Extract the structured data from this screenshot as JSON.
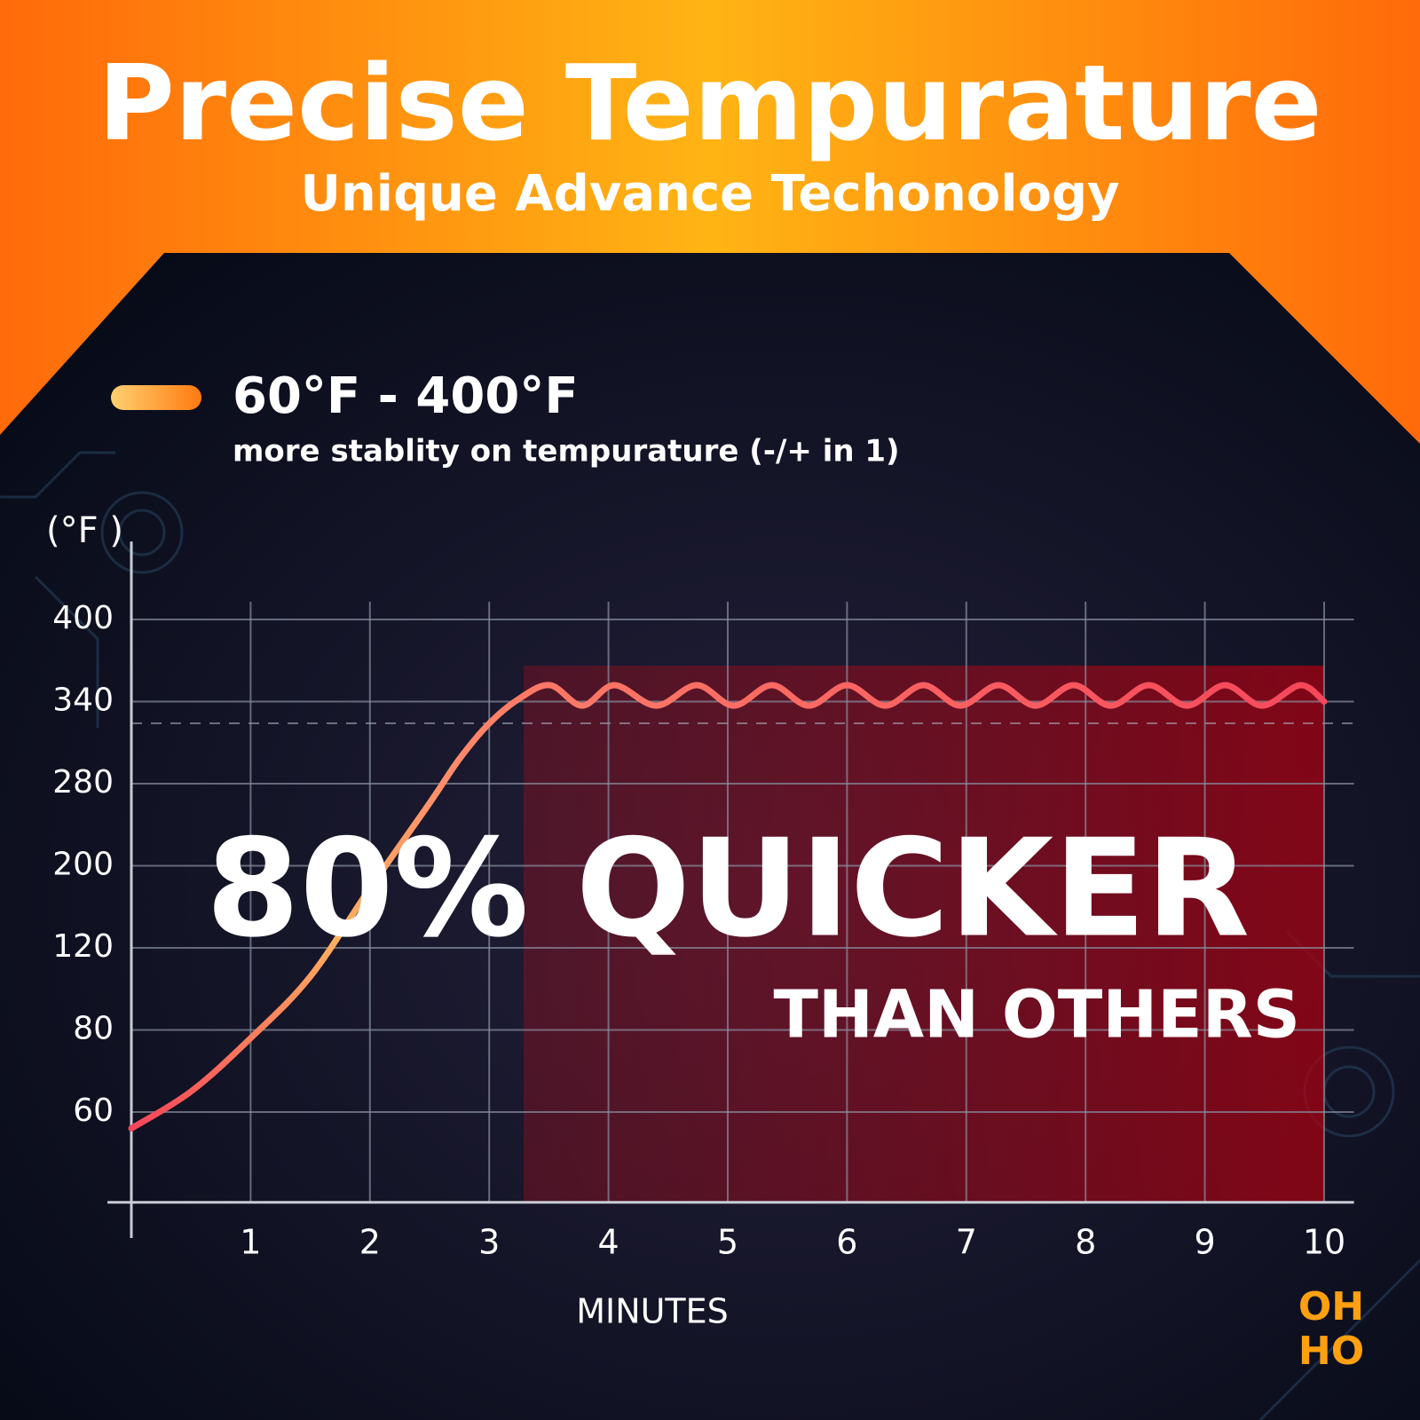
{
  "chart_data": {
    "type": "line",
    "title": "Precise Tempurature",
    "subtitle": "Unique Advance Techonology",
    "note": "more stablity on tempurature (-/+ in 1)",
    "y_label": "(°F )",
    "x_label": "MINUTES",
    "annotations": [
      "80% QUICKER",
      "THAN OTHERS"
    ],
    "x": [
      0,
      0.5,
      1,
      1.5,
      2,
      2.5,
      2.75,
      3,
      3.25,
      3.51,
      3.78,
      4.05,
      4.4,
      4.74,
      5.05,
      5.37,
      5.68,
      6.0,
      6.32,
      6.64,
      6.95,
      7.27,
      7.58,
      7.9,
      8.21,
      8.53,
      8.85,
      9.17,
      9.48,
      9.8,
      10
    ],
    "series": [
      {
        "name": "60°F - 400°F",
        "color": "#f5455a",
        "values": [
          56,
          65,
          78,
          106,
          178,
          261,
          298,
          324,
          342,
          352,
          337,
          352,
          337,
          352,
          337,
          352,
          337,
          352,
          337,
          352,
          337,
          352,
          337,
          352,
          337,
          352,
          337,
          352,
          337,
          352,
          340
        ]
      }
    ],
    "xlim": [
      -0.2,
      10.25
    ],
    "xticks": [
      1,
      2,
      3,
      4,
      5,
      6,
      7,
      8,
      9,
      10
    ],
    "ylim": [
      38,
      457
    ],
    "yticks": [
      60,
      80,
      120,
      200,
      280,
      340,
      400
    ],
    "yscale": "tick-spaced",
    "grid": true
  },
  "logo": [
    "OH",
    "HO"
  ]
}
